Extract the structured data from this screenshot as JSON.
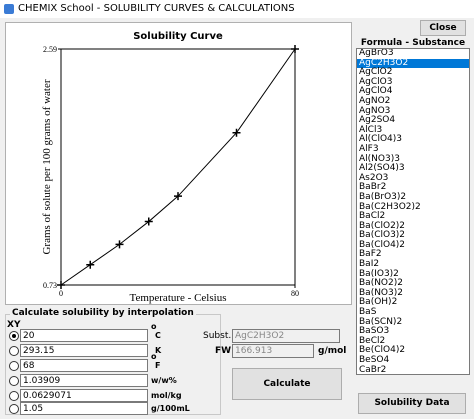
{
  "window": {
    "title": "CHEMIX School - SOLUBILITY CURVES & CALCULATIONS",
    "close": "Close"
  },
  "chart": {
    "type": "line",
    "title": "Solubility Curve",
    "y_label": "Grams of solute per 100 grams of water",
    "x_label": "Temperature - Celsius",
    "x": [
      0,
      10,
      20,
      30,
      40,
      60,
      80
    ],
    "values": [
      0.73,
      0.89,
      1.05,
      1.23,
      1.43,
      1.93,
      2.59
    ],
    "color": "#000000",
    "xlim": [
      0,
      80
    ],
    "ylim": [
      0.73,
      2.59
    ],
    "xticks": [
      0,
      80
    ],
    "yticks": [
      0.73,
      2.59
    ]
  },
  "list": {
    "header": "Formula - Substance",
    "selected": 1,
    "items": [
      "AgBrO3",
      "AgC2H3O2",
      "AgClO2",
      "AgClO3",
      "AgClO4",
      "AgNO2",
      "AgNO3",
      "Ag2SO4",
      "AlCl3",
      "Al(ClO4)3",
      "AlF3",
      "Al(NO3)3",
      "Al2(SO4)3",
      "As2O3",
      "BaBr2",
      "Ba(BrO3)2",
      "Ba(C2H3O2)2",
      "BaCl2",
      "Ba(ClO2)2",
      "Ba(ClO3)2",
      "Ba(ClO4)2",
      "BaF2",
      "BaI2",
      "Ba(IO3)2",
      "Ba(NO2)2",
      "Ba(NO3)2",
      "Ba(OH)2",
      "BaS",
      "Ba(SCN)2",
      "BaSO3",
      "BeCl2",
      "Be(ClO4)2",
      "BeSO4",
      "CaBr2"
    ]
  },
  "calc": {
    "title": "Calculate solubility by interpolation",
    "xy": "XY",
    "checked": 0,
    "rows": [
      {
        "value": "20",
        "degree": "o",
        "unit": "C"
      },
      {
        "value": "293.15",
        "unit": "K"
      },
      {
        "value": "68",
        "degree": "o",
        "unit": "F"
      },
      {
        "value": "1.03909",
        "unit": "w/w%"
      },
      {
        "value": "0.0629071",
        "unit": "mol/kg"
      },
      {
        "value": "1.05",
        "unit": "g/100mL"
      }
    ]
  },
  "subst": {
    "label": "Subst.",
    "value": "AgC2H3O2"
  },
  "fw": {
    "label": "FW",
    "value": "166.913",
    "unit": "g/mol"
  },
  "buttons": {
    "calculate": "Calculate",
    "solubility_data": "Solubility Data"
  }
}
